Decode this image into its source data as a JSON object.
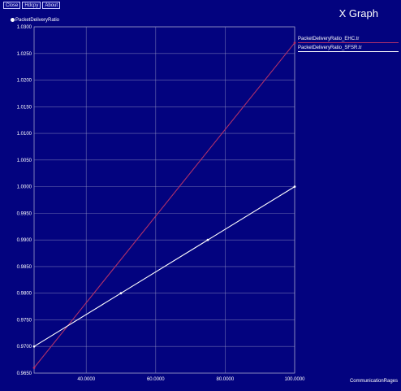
{
  "toolbar": {
    "buttons": [
      "Close",
      "Hdcpy",
      "About"
    ]
  },
  "window": {
    "title": "X Graph"
  },
  "colors": {
    "background": "#03037f",
    "grid": "#9a9ac8",
    "series_1": "#b0306a",
    "series_2": "#ffffff"
  },
  "chart_data": {
    "type": "line",
    "title": "",
    "ylabel": "PacketDeliveryRatio",
    "xlabel": "CommunicationRages",
    "xlim": [
      25,
      100
    ],
    "ylim": [
      0.965,
      1.03
    ],
    "x_ticks": [
      40,
      60,
      80,
      100
    ],
    "x_tick_labels": [
      "40.0000",
      "60.0000",
      "80.0000",
      "100.0000"
    ],
    "y_ticks": [
      0.965,
      0.97,
      0.975,
      0.98,
      0.985,
      0.99,
      0.995,
      1.0,
      1.005,
      1.01,
      1.015,
      1.02,
      1.025,
      1.03
    ],
    "y_tick_labels": [
      "0.9650",
      "0.9700",
      "0.9750",
      "0.9800",
      "0.9850",
      "0.9900",
      "0.9950",
      "1.0000",
      "1.0050",
      "1.0100",
      "1.0150",
      "1.0200",
      "1.0250",
      "1.0300"
    ],
    "grid": true,
    "legend_position": "right",
    "series": [
      {
        "name": "PacketDeliveryRatio_EHC.tr",
        "color": "#b0306a",
        "x": [
          25,
          100
        ],
        "y": [
          0.966,
          1.027
        ]
      },
      {
        "name": "PacketDeliveryRatio_SFSR.tr",
        "color": "#ffffff",
        "x": [
          25,
          50,
          75,
          100
        ],
        "y": [
          0.97,
          0.98,
          0.99,
          1.0
        ]
      }
    ]
  }
}
